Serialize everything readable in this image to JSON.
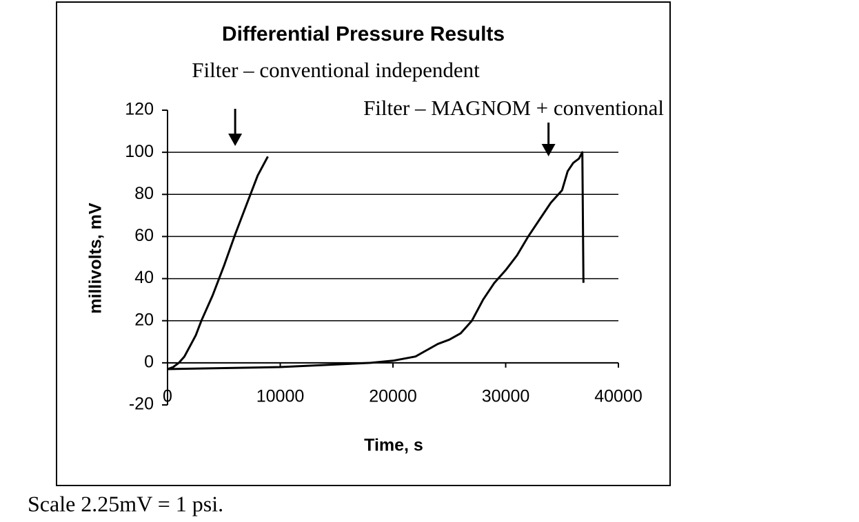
{
  "chart_data": {
    "type": "line",
    "title": "Differential Pressure Results",
    "x_label": "Time, s",
    "y_label": "millivolts, mV",
    "footnote": "Scale 2.25mV = 1 psi.",
    "xlim": [
      0,
      40000
    ],
    "xticks": [
      0,
      10000,
      20000,
      30000,
      40000
    ],
    "ylim": [
      -20,
      120
    ],
    "yticks": [
      -20,
      0,
      20,
      40,
      60,
      80,
      100,
      120
    ],
    "grid": true,
    "series": [
      {
        "name": "Filter – conventional independent",
        "color": "#000000",
        "x": [
          0,
          500,
          1000,
          1500,
          2000,
          2500,
          3000,
          4000,
          5000,
          6000,
          7000,
          8000,
          8900
        ],
        "values": [
          -3,
          -2,
          0,
          3,
          8,
          13,
          20,
          32,
          46,
          61,
          75,
          89,
          98
        ],
        "arrow_x": 6000
      },
      {
        "name": "Filter – MAGNOM + conventional",
        "color": "#000000",
        "x": [
          0,
          10000,
          18000,
          20000,
          22000,
          23000,
          24000,
          25000,
          26000,
          27000,
          28000,
          29000,
          30000,
          31000,
          32000,
          33000,
          34000,
          35000,
          35500,
          36000,
          36500,
          36800,
          36900
        ],
        "values": [
          -3,
          -2,
          0,
          1,
          3,
          6,
          9,
          11,
          14,
          20,
          30,
          38,
          44,
          51,
          60,
          68,
          76,
          82,
          91,
          95,
          97,
          100,
          38
        ],
        "arrow_x": 33800
      }
    ]
  }
}
